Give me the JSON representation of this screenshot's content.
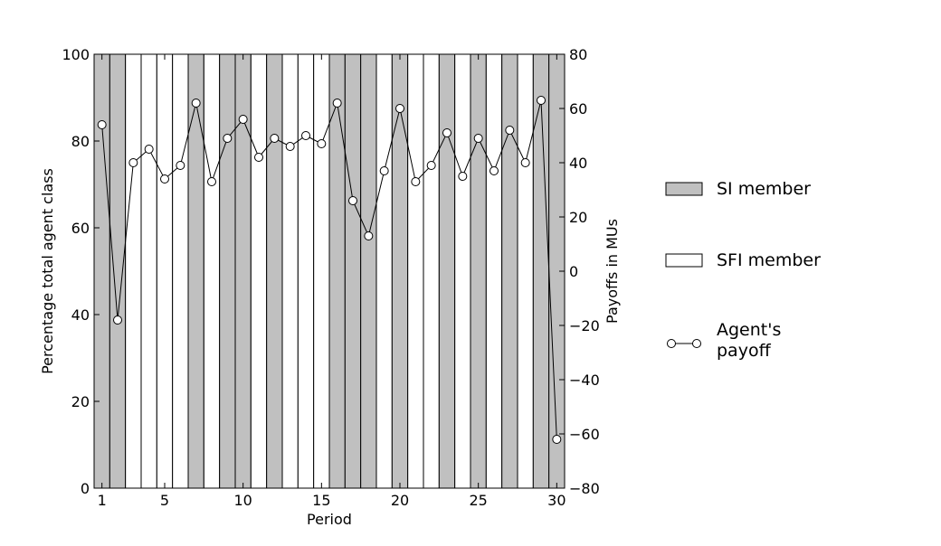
{
  "chart_data": {
    "type": "bar",
    "x": [
      1,
      2,
      3,
      4,
      5,
      6,
      7,
      8,
      9,
      10,
      11,
      12,
      13,
      14,
      15,
      16,
      17,
      18,
      19,
      20,
      21,
      22,
      23,
      24,
      25,
      26,
      27,
      28,
      29,
      30
    ],
    "membership": [
      "SI",
      "SI",
      "SFI",
      "SFI",
      "SFI",
      "SFI",
      "SI",
      "SFI",
      "SI",
      "SI",
      "SFI",
      "SI",
      "SFI",
      "SFI",
      "SFI",
      "SI",
      "SI",
      "SI",
      "SFI",
      "SI",
      "SFI",
      "SFI",
      "SI",
      "SFI",
      "SI",
      "SFI",
      "SI",
      "SFI",
      "SI",
      "SI"
    ],
    "bar_value": 100,
    "payoff": [
      54,
      -18,
      40,
      45,
      34,
      39,
      62,
      33,
      49,
      56,
      42,
      49,
      46,
      50,
      47,
      62,
      26,
      13,
      37,
      60,
      33,
      39,
      51,
      35,
      49,
      37,
      52,
      40,
      63,
      -62
    ],
    "xlabel": "Period",
    "ylabel_left": "Percentage total agent class",
    "ylabel_right": "Payoffs in MUs",
    "xticks": [
      "1",
      "5",
      "10",
      "15",
      "20",
      "25",
      "30"
    ],
    "xtick_values": [
      1,
      5,
      10,
      15,
      20,
      25,
      30
    ],
    "yticks_left": [
      "0",
      "20",
      "40",
      "60",
      "80",
      "100"
    ],
    "yticks_right": [
      "−80",
      "−60",
      "−40",
      "−20",
      "0",
      "20",
      "40",
      "60",
      "80"
    ],
    "ylim_left": [
      0,
      100
    ],
    "ylim_right": [
      -80,
      80
    ],
    "xlim": [
      0.5,
      30.5
    ],
    "legend_position": "right",
    "legend": [
      {
        "key": "si",
        "label": "SI member",
        "color": "#c0c0c0"
      },
      {
        "key": "sfi",
        "label": "SFI member",
        "color": "#ffffff"
      },
      {
        "key": "payoff",
        "label_line1": "Agent's",
        "label_line2": "payoff"
      }
    ]
  }
}
